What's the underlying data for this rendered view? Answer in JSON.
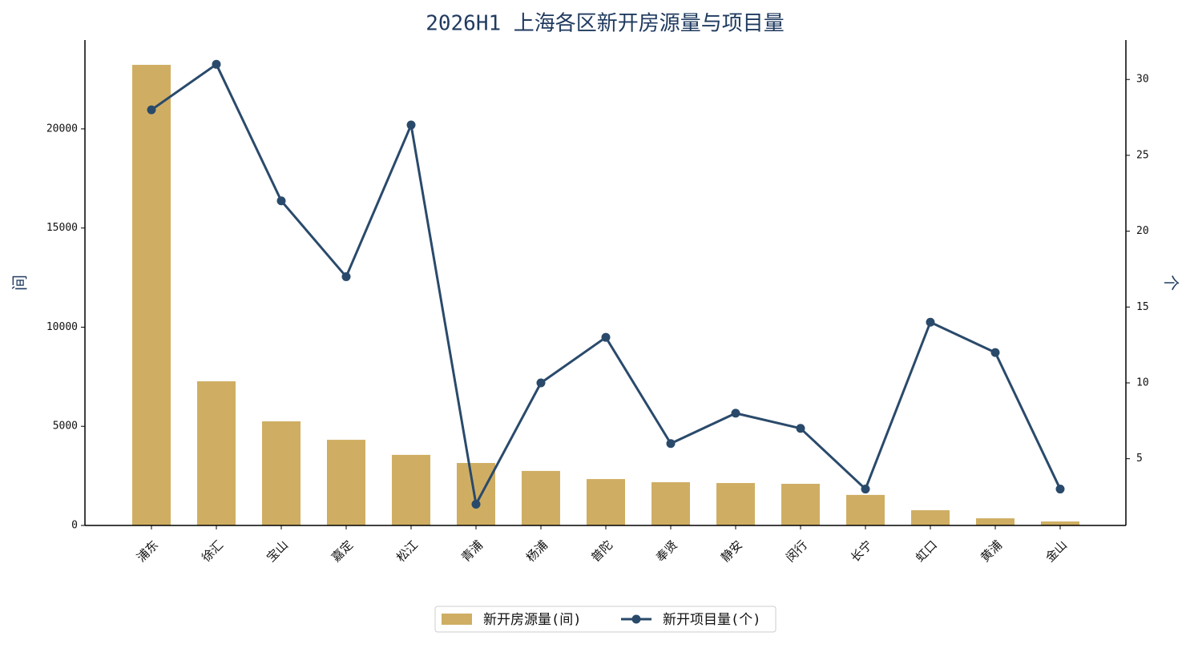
{
  "chart_data": {
    "type": "bar-line",
    "title": "2026H1 上海各区新开房源量与项目量",
    "y_label": "间",
    "y2_label": "个",
    "categories": [
      "浦东",
      "徐汇",
      "宝山",
      "嘉定",
      "松江",
      "青浦",
      "杨浦",
      "普陀",
      "奉贤",
      "静安",
      "闵行",
      "长宁",
      "虹口",
      "黄浦",
      "金山"
    ],
    "series": [
      {
        "name": "新开房源量(间)",
        "type": "bar",
        "color": "#cfae63",
        "values": [
          23230,
          7270,
          5250,
          4320,
          3560,
          3150,
          2750,
          2340,
          2180,
          2140,
          2100,
          1540,
          770,
          360,
          200
        ]
      },
      {
        "name": "新开项目量(个)",
        "type": "line",
        "axis": "y2",
        "color": "#2a4a6b",
        "values": [
          28,
          31,
          22,
          17,
          27,
          2,
          10,
          13,
          6,
          8,
          7,
          3,
          14,
          12,
          3
        ]
      }
    ],
    "ylim": [
      0,
      24480
    ],
    "yticks": [
      0,
      5000,
      10000,
      15000,
      20000
    ],
    "y2lim": [
      0.6,
      32.6
    ],
    "y2ticks": [
      5,
      10,
      15,
      20,
      25,
      30
    ],
    "legend": "bottom"
  }
}
